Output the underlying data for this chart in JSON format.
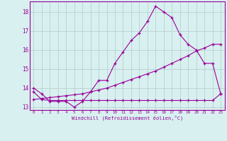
{
  "hours": [
    0,
    1,
    2,
    3,
    4,
    5,
    6,
    7,
    8,
    9,
    10,
    11,
    12,
    13,
    14,
    15,
    16,
    17,
    18,
    19,
    20,
    21,
    22,
    23
  ],
  "curve_main": [
    14.0,
    13.7,
    13.3,
    13.3,
    13.3,
    13.0,
    13.3,
    13.8,
    14.4,
    14.4,
    15.3,
    15.9,
    16.5,
    16.9,
    17.5,
    18.3,
    18.0,
    17.7,
    16.8,
    16.3,
    16.0,
    15.3,
    15.3,
    13.7
  ],
  "curve_linear": [
    13.4,
    13.45,
    13.5,
    13.55,
    13.6,
    13.65,
    13.7,
    13.8,
    13.9,
    14.0,
    14.15,
    14.3,
    14.45,
    14.6,
    14.75,
    14.9,
    15.1,
    15.3,
    15.5,
    15.7,
    15.95,
    16.1,
    16.3,
    16.3
  ],
  "curve_flat": [
    13.8,
    13.4,
    13.35,
    13.35,
    13.35,
    13.35,
    13.35,
    13.35,
    13.35,
    13.35,
    13.35,
    13.35,
    13.35,
    13.35,
    13.35,
    13.35,
    13.35,
    13.35,
    13.35,
    13.35,
    13.35,
    13.35,
    13.35,
    13.7
  ],
  "line_color": "#990099",
  "bg_color": "#d8f0f0",
  "grid_color": "#b8d0d0",
  "xlabel": "Windchill (Refroidissement éolien,°C)",
  "xlim": [
    -0.5,
    23.5
  ],
  "ylim": [
    12.85,
    18.55
  ],
  "yticks": [
    13,
    14,
    15,
    16,
    17,
    18
  ],
  "xticks": [
    0,
    1,
    2,
    3,
    4,
    5,
    6,
    7,
    8,
    9,
    10,
    11,
    12,
    13,
    14,
    15,
    16,
    17,
    18,
    19,
    20,
    21,
    22,
    23
  ]
}
